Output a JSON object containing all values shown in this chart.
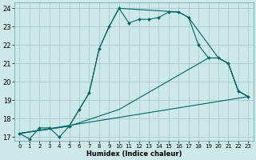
{
  "xlabel": "Humidex (Indice chaleur)",
  "xlim": [
    -0.5,
    23.5
  ],
  "ylim": [
    16.8,
    24.3
  ],
  "yticks": [
    17,
    18,
    19,
    20,
    21,
    22,
    23,
    24
  ],
  "xticks": [
    0,
    1,
    2,
    3,
    4,
    5,
    6,
    7,
    8,
    9,
    10,
    11,
    12,
    13,
    14,
    15,
    16,
    17,
    18,
    19,
    20,
    21,
    22,
    23
  ],
  "bg_color": "#cce8e8",
  "grid_color": "#aacaca",
  "line_color": "#006666",
  "lines": [
    {
      "x": [
        0,
        1,
        2,
        3,
        4,
        5,
        6,
        7,
        8,
        9,
        10,
        11,
        12,
        13,
        14,
        15,
        16,
        17,
        18,
        19,
        20,
        21,
        22,
        23
      ],
      "y": [
        17.2,
        16.9,
        17.5,
        17.5,
        17.0,
        17.6,
        18.5,
        19.4,
        21.8,
        23.0,
        24.0,
        23.2,
        23.4,
        23.4,
        23.5,
        23.8,
        23.8,
        23.5,
        22.0,
        21.3,
        21.3,
        21.0,
        19.5,
        19.2
      ],
      "has_marker": true,
      "markersize": 2.0
    },
    {
      "x": [
        0,
        5,
        6,
        7,
        8,
        9,
        10,
        16,
        17,
        20,
        21,
        22,
        23
      ],
      "y": [
        17.2,
        17.6,
        18.5,
        19.4,
        21.8,
        23.0,
        24.0,
        23.8,
        23.5,
        21.3,
        21.0,
        19.5,
        19.2
      ],
      "has_marker": false,
      "markersize": 0
    },
    {
      "x": [
        0,
        23
      ],
      "y": [
        17.2,
        19.2
      ],
      "has_marker": false,
      "markersize": 0
    },
    {
      "x": [
        0,
        5,
        10,
        19,
        20,
        21,
        22,
        23
      ],
      "y": [
        17.2,
        17.6,
        18.5,
        21.3,
        21.3,
        21.0,
        19.5,
        19.2
      ],
      "has_marker": false,
      "markersize": 0
    }
  ]
}
